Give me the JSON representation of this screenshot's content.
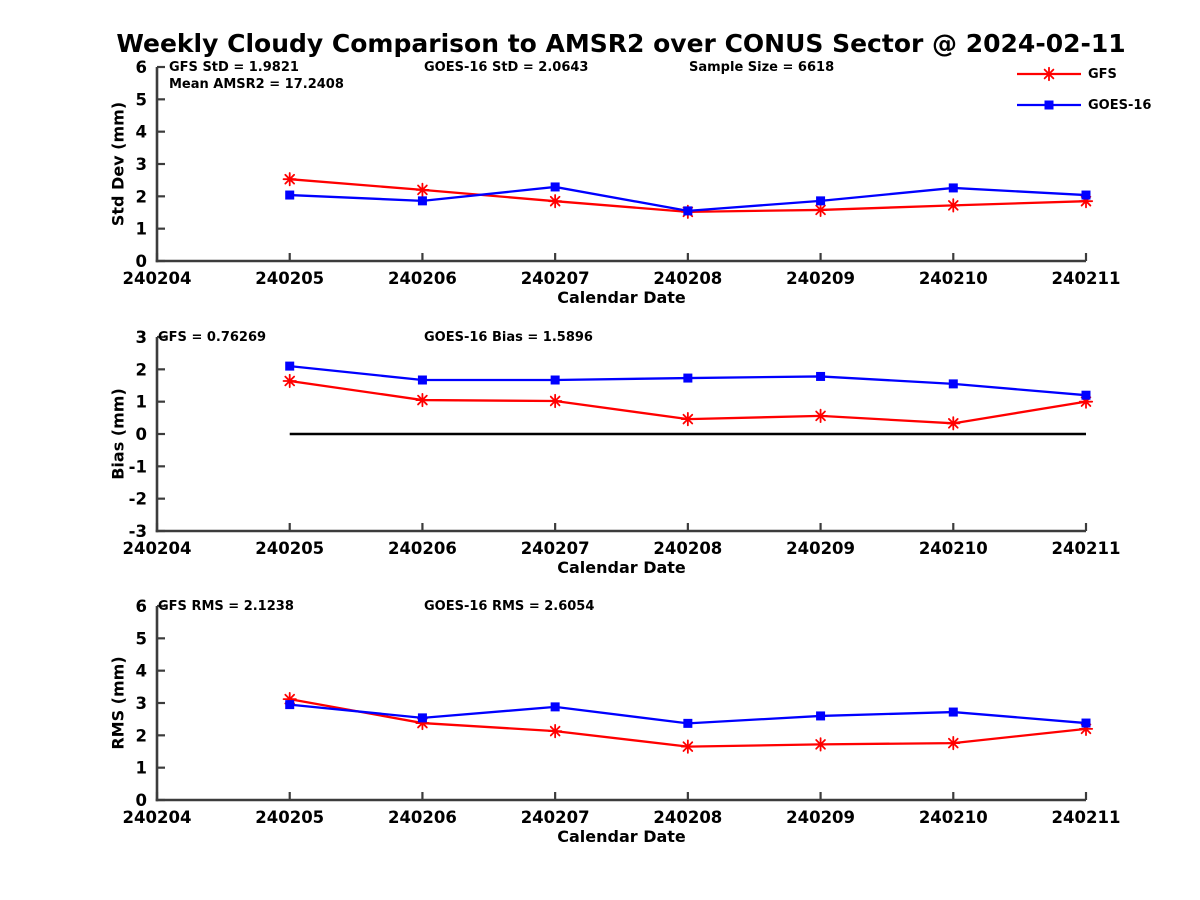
{
  "title": "Weekly Cloudy Comparison to AMSR2 over CONUS Sector @ 2024-02-11",
  "colors": {
    "gfs_red": "#ff0000",
    "goes16_blue": "#0000ff",
    "zero_line": "#000000",
    "axis": "#3c3c3c",
    "text": "#000000",
    "background": "#ffffff"
  },
  "legend": {
    "position": "top-right",
    "items": [
      {
        "label": "GFS",
        "color": "#ff0000",
        "marker": "asterisk"
      },
      {
        "label": "GOES-16",
        "color": "#0000ff",
        "marker": "square"
      }
    ]
  },
  "stats": {
    "gfs_std": 1.9821,
    "goes16_std": 2.0643,
    "sample_size": 6618,
    "mean_amsr2": 17.2408,
    "gfs_bias": 0.76269,
    "goes16_bias": 1.5896,
    "gfs_rms": 2.1238,
    "goes16_rms": 2.6054
  },
  "chart_data": [
    {
      "type": "line",
      "ylabel": "Std Dev (mm)",
      "xlabel": "Calendar Date",
      "ylim": [
        0,
        6
      ],
      "yticks": [
        "0",
        "1",
        "2",
        "3",
        "4",
        "5",
        "6"
      ],
      "xticks": [
        "240204",
        "240205",
        "240206",
        "240207",
        "240208",
        "240209",
        "240210",
        "240211"
      ],
      "x": [
        "240205",
        "240206",
        "240207",
        "240208",
        "240209",
        "240210",
        "240211"
      ],
      "series": [
        {
          "name": "GFS",
          "color": "#ff0000",
          "marker": "asterisk",
          "values": [
            2.53,
            2.2,
            1.85,
            1.52,
            1.58,
            1.72,
            1.85
          ]
        },
        {
          "name": "GOES-16",
          "color": "#0000ff",
          "marker": "square",
          "values": [
            2.04,
            1.86,
            2.29,
            1.55,
            1.86,
            2.26,
            2.04
          ]
        }
      ],
      "annotations": [
        "GFS StD = 1.9821",
        "GOES-16 StD = 2.0643",
        "Sample Size = 6618",
        "Mean AMSR2 = 17.2408"
      ],
      "zero_line": false,
      "grid": false
    },
    {
      "type": "line",
      "ylabel": "Bias (mm)",
      "xlabel": "Calendar Date",
      "ylim": [
        -3,
        3
      ],
      "yticks": [
        "-3",
        "-2",
        "-1",
        "0",
        "1",
        "2",
        "3"
      ],
      "xticks": [
        "240204",
        "240205",
        "240206",
        "240207",
        "240208",
        "240209",
        "240210",
        "240211"
      ],
      "x": [
        "240205",
        "240206",
        "240207",
        "240208",
        "240209",
        "240210",
        "240211"
      ],
      "series": [
        {
          "name": "GFS",
          "color": "#ff0000",
          "marker": "asterisk",
          "values": [
            1.64,
            1.05,
            1.02,
            0.46,
            0.56,
            0.33,
            1.0
          ]
        },
        {
          "name": "GOES-16",
          "color": "#0000ff",
          "marker": "square",
          "values": [
            2.1,
            1.67,
            1.67,
            1.73,
            1.78,
            1.55,
            1.2
          ]
        }
      ],
      "annotations": [
        "GFS = 0.76269",
        "GOES-16 Bias  = 1.5896"
      ],
      "zero_line": true,
      "grid": false
    },
    {
      "type": "line",
      "ylabel": "RMS (mm)",
      "xlabel": "Calendar Date",
      "ylim": [
        0,
        6
      ],
      "yticks": [
        "0",
        "1",
        "2",
        "3",
        "4",
        "5",
        "6"
      ],
      "xticks": [
        "240204",
        "240205",
        "240206",
        "240207",
        "240208",
        "240209",
        "240210",
        "240211"
      ],
      "x": [
        "240205",
        "240206",
        "240207",
        "240208",
        "240209",
        "240210",
        "240211"
      ],
      "series": [
        {
          "name": "GFS",
          "color": "#ff0000",
          "marker": "asterisk",
          "values": [
            3.12,
            2.38,
            2.13,
            1.65,
            1.72,
            1.76,
            2.2
          ]
        },
        {
          "name": "GOES-16",
          "color": "#0000ff",
          "marker": "square",
          "values": [
            2.95,
            2.54,
            2.88,
            2.37,
            2.6,
            2.72,
            2.38
          ]
        }
      ],
      "annotations": [
        "GFS RMS = 2.1238",
        "GOES-16 RMS = 2.6054"
      ],
      "zero_line": false,
      "grid": false
    }
  ]
}
